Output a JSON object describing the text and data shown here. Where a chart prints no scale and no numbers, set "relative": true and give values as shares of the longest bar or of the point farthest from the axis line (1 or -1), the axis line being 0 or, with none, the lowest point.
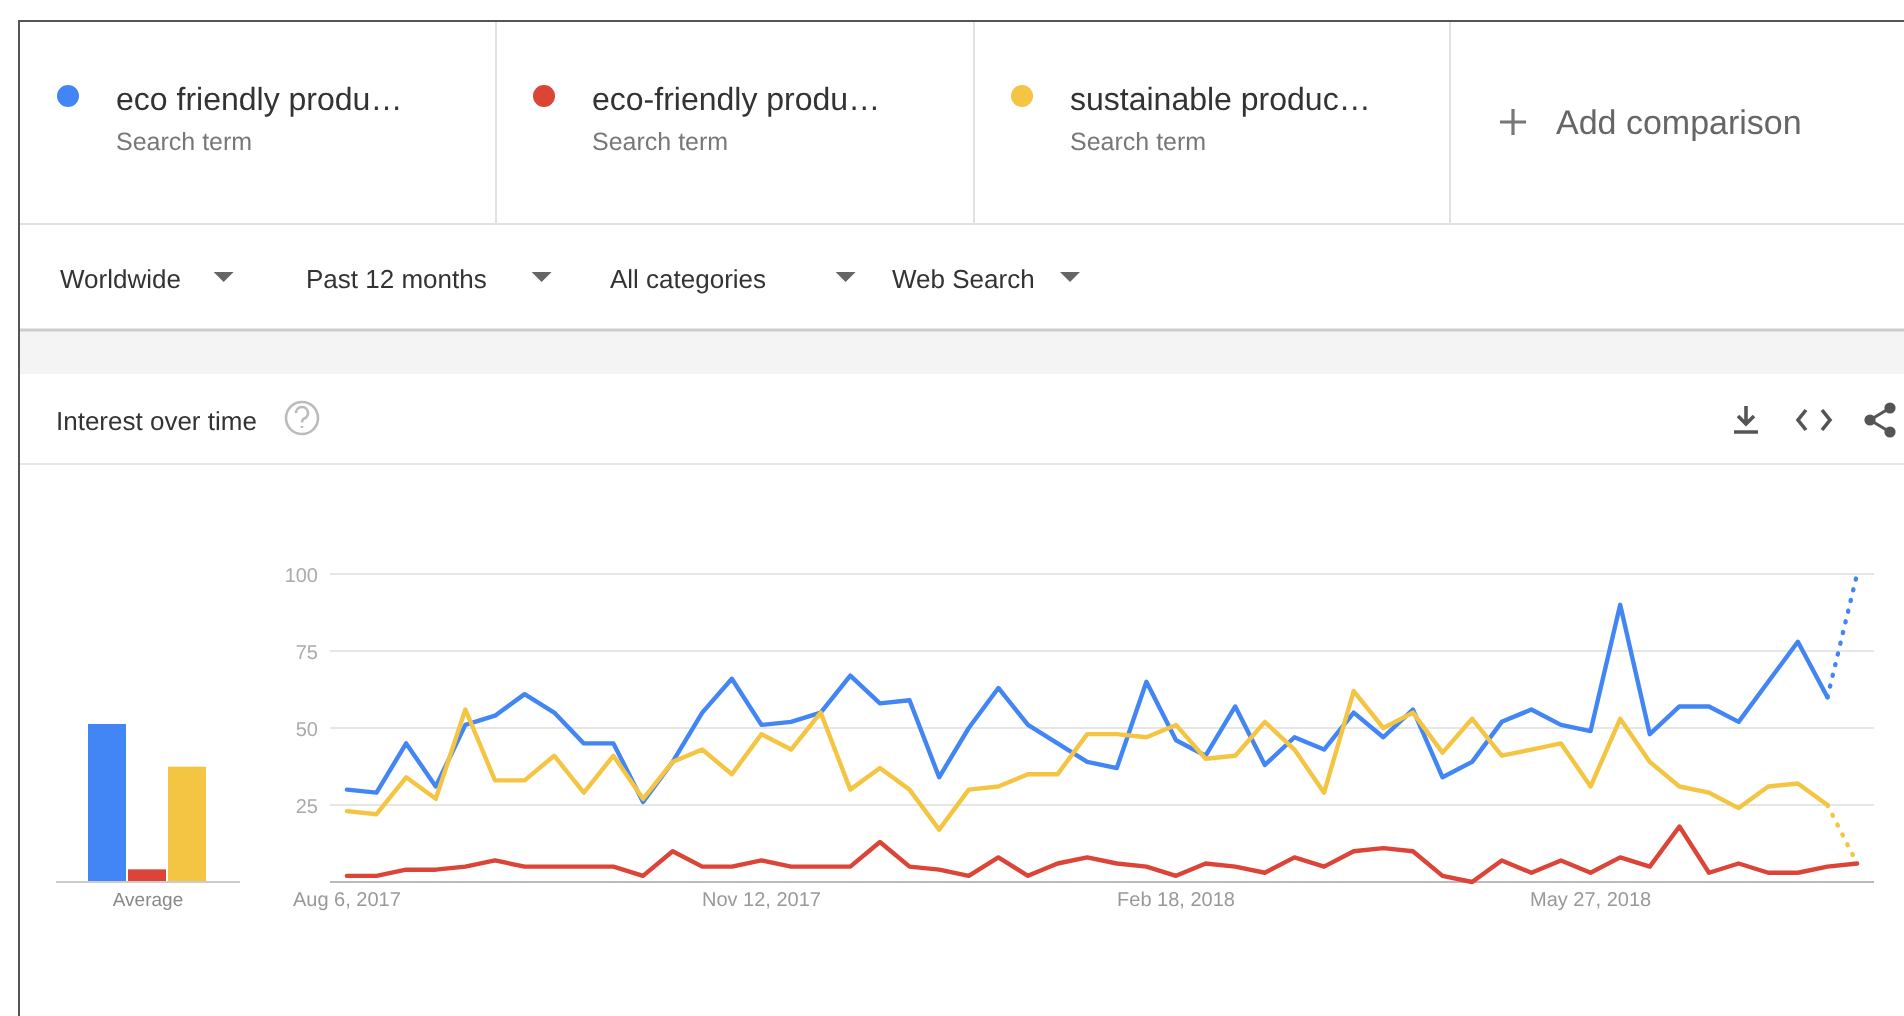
{
  "chart_data": [
    {
      "type": "bar",
      "relative": true,
      "categories": [
        "Average"
      ],
      "series": [
        {
          "color": "#4285f4",
          "values": [
            1
          ]
        },
        {
          "color": "#db4437",
          "values": [
            0.08
          ]
        },
        {
          "color": "#f4c542",
          "values": [
            0.73
          ]
        }
      ]
    },
    {
      "type": "line",
      "title": "Interest over time",
      "legend": "top",
      "grid": "y",
      "marker": "none",
      "annotations": [
        "Search term",
        "Search term",
        "Search term",
        "Add comparison",
        "Worldwide",
        "Past 12 months",
        "All categories",
        "Web Search"
      ],
      "x": [
        "2017-08-06",
        "2017-08-13",
        "2017-08-20",
        "2017-08-27",
        "2017-09-03",
        "2017-09-10",
        "2017-09-17",
        "2017-09-24",
        "2017-10-01",
        "2017-10-08",
        "2017-10-15",
        "2017-10-22",
        "2017-10-29",
        "2017-11-05",
        "2017-11-12",
        "2017-11-19",
        "2017-11-26",
        "2017-12-03",
        "2017-12-10",
        "2017-12-17",
        "2017-12-24",
        "2017-12-31",
        "2018-01-07",
        "2018-01-14",
        "2018-01-21",
        "2018-01-28",
        "2018-02-04",
        "2018-02-11",
        "2018-02-18",
        "2018-02-25",
        "2018-03-04",
        "2018-03-11",
        "2018-03-18",
        "2018-03-25",
        "2018-04-01",
        "2018-04-08",
        "2018-04-15",
        "2018-04-22",
        "2018-04-29",
        "2018-05-06",
        "2018-05-13",
        "2018-05-20",
        "2018-05-27",
        "2018-06-03",
        "2018-06-10",
        "2018-06-17",
        "2018-06-24",
        "2018-07-01",
        "2018-07-08",
        "2018-07-15",
        "2018-07-22",
        "2018-07-29"
      ],
      "xlim": [
        "2017-08-02",
        "2018-08-02"
      ],
      "xticks": [
        {
          "value": "2017-08-06",
          "label": "Aug 6, 2017"
        },
        {
          "value": "2017-11-12",
          "label": "Nov 12, 2017"
        },
        {
          "value": "2018-02-18",
          "label": "Feb 18, 2018"
        },
        {
          "value": "2018-05-27",
          "label": "May 27, 2018"
        }
      ],
      "ylim": [
        0,
        100
      ],
      "yticks": [
        25,
        50,
        75,
        100
      ],
      "series": [
        {
          "name": "eco friendly produ…",
          "color": "#4285f4",
          "line_style": "solid",
          "values": [
            30,
            29,
            45,
            31,
            51,
            54,
            61,
            55,
            45,
            45,
            26,
            39,
            55,
            66,
            51,
            52,
            55,
            67,
            58,
            59,
            34,
            50,
            63,
            51,
            45,
            39,
            37,
            65,
            46,
            41,
            57,
            38,
            47,
            43,
            55,
            47,
            56,
            34,
            39,
            52,
            56,
            51,
            49,
            90,
            48,
            57,
            57,
            52,
            65,
            78,
            60,
            null
          ]
        },
        {
          "name": "eco-friendly produ…",
          "color": "#db4437",
          "line_style": "solid",
          "values": [
            2,
            2,
            4,
            4,
            5,
            7,
            5,
            5,
            5,
            5,
            2,
            10,
            5,
            5,
            7,
            5,
            5,
            5,
            13,
            5,
            4,
            2,
            8,
            2,
            6,
            8,
            6,
            5,
            2,
            6,
            5,
            3,
            8,
            5,
            10,
            11,
            10,
            2,
            0,
            7,
            3,
            7,
            3,
            8,
            5,
            18,
            3,
            6,
            3,
            3,
            5,
            6
          ]
        },
        {
          "name": "sustainable produc…",
          "color": "#f4c542",
          "line_style": "solid",
          "values": [
            23,
            22,
            34,
            27,
            56,
            33,
            33,
            41,
            29,
            41,
            27,
            39,
            43,
            35,
            48,
            43,
            55,
            30,
            37,
            30,
            17,
            30,
            31,
            35,
            35,
            48,
            48,
            47,
            51,
            40,
            41,
            52,
            43,
            29,
            62,
            50,
            55,
            42,
            53,
            41,
            43,
            45,
            31,
            53,
            39,
            31,
            29,
            24,
            31,
            32,
            25,
            null
          ]
        },
        {
          "color": "#4285f4",
          "line_style": "dotted",
          "x": [
            "2018-07-22",
            "2018-07-29"
          ],
          "values": [
            60,
            100
          ]
        },
        {
          "color": "#f4c542",
          "line_style": "dotted",
          "x": [
            "2018-07-22",
            "2018-07-29"
          ],
          "values": [
            25,
            6
          ]
        }
      ]
    }
  ]
}
